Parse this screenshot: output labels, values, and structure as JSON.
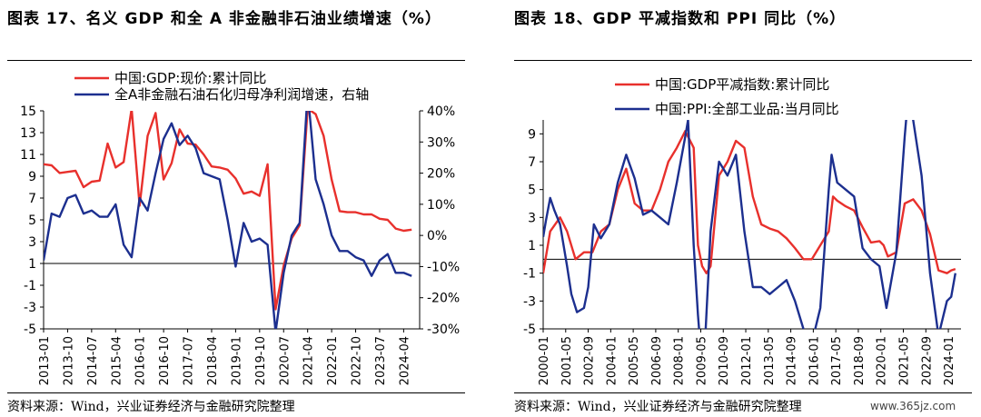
{
  "left_title": "图表 17、名义 GDP 和全 A 非金融非石油业绩增速（%）",
  "right_title": "图表 18、GDP 平减指数和 PPI 同比（%）",
  "left_source": "资料来源：Wind，兴业证券经济与金融研究院整理",
  "right_source": "资料来源：Wind，兴业证券经济与金融研究院整理",
  "watermark": "www.365jz.com",
  "colors": {
    "red": "#e8302c",
    "blue": "#1c2f8f"
  },
  "chart_data": [
    {
      "type": "line",
      "x_tick_labels": [
        "2013-01",
        "2013-10",
        "2014-07",
        "2015-04",
        "2016-01",
        "2016-10",
        "2017-07",
        "2018-04",
        "2019-01",
        "2019-10",
        "2020-07",
        "2021-04",
        "2022-01",
        "2022-10",
        "2023-07",
        "2024-04"
      ],
      "y_left": {
        "ticks": [
          -5,
          -3,
          -1,
          1,
          3,
          5,
          7,
          9,
          11,
          13,
          15
        ],
        "lim": [
          -5,
          15
        ]
      },
      "y_right": {
        "ticks": [
          "-30%",
          "-20%",
          "-10%",
          "0%",
          "10%",
          "20%",
          "30%",
          "40%"
        ],
        "lim": [
          -30,
          40
        ]
      },
      "legend": [
        "中国:GDP:现价:累计同比",
        "全A非金融石油石化归母净利润增速，右轴"
      ],
      "series": [
        {
          "name": "中国:GDP:现价:累计同比",
          "axis": "left",
          "color": "red",
          "x": [
            "2013-01",
            "2013-04",
            "2013-07",
            "2013-10",
            "2014-01",
            "2014-04",
            "2014-07",
            "2014-10",
            "2015-01",
            "2015-04",
            "2015-07",
            "2015-10",
            "2016-01",
            "2016-04",
            "2016-07",
            "2016-10",
            "2017-01",
            "2017-04",
            "2017-07",
            "2017-10",
            "2018-01",
            "2018-04",
            "2018-07",
            "2018-10",
            "2019-01",
            "2019-04",
            "2019-07",
            "2019-10",
            "2020-01",
            "2020-04",
            "2020-07",
            "2020-10",
            "2021-01",
            "2021-04",
            "2021-07",
            "2021-10",
            "2022-01",
            "2022-04",
            "2022-07",
            "2022-10",
            "2023-01",
            "2023-04",
            "2023-07",
            "2023-10",
            "2024-01",
            "2024-04",
            "2024-07"
          ],
          "y": [
            10.1,
            10.0,
            9.3,
            9.4,
            9.5,
            8.0,
            8.5,
            8.6,
            12.0,
            9.8,
            10.3,
            15.2,
            6.3,
            12.7,
            14.8,
            8.7,
            10.2,
            13.3,
            12.0,
            11.9,
            11.0,
            9.9,
            9.8,
            9.6,
            8.8,
            7.4,
            7.6,
            7.2,
            10.1,
            -3.2,
            0.8,
            3.3,
            4.5,
            15.2,
            14.7,
            12.7,
            8.7,
            5.8,
            5.7,
            5.7,
            5.5,
            5.5,
            5.1,
            5.0,
            4.2,
            4.0,
            4.1
          ]
        },
        {
          "name": "全A非金融石油石化归母净利润增速，右轴",
          "axis": "right",
          "color": "blue",
          "x": [
            "2013-01",
            "2013-04",
            "2013-07",
            "2013-10",
            "2014-01",
            "2014-04",
            "2014-07",
            "2014-10",
            "2015-01",
            "2015-04",
            "2015-07",
            "2015-10",
            "2016-01",
            "2016-04",
            "2016-07",
            "2016-10",
            "2017-01",
            "2017-04",
            "2017-07",
            "2017-10",
            "2018-01",
            "2018-04",
            "2018-07",
            "2018-10",
            "2019-01",
            "2019-04",
            "2019-07",
            "2019-10",
            "2020-01",
            "2020-04",
            "2020-07",
            "2020-10",
            "2021-01",
            "2021-04",
            "2021-07",
            "2021-10",
            "2022-01",
            "2022-04",
            "2022-07",
            "2022-10",
            "2023-01",
            "2023-04",
            "2023-07",
            "2023-10",
            "2024-01",
            "2024-04",
            "2024-07"
          ],
          "y": [
            -8,
            7,
            6,
            12,
            13,
            7,
            8,
            6,
            6,
            10,
            -3,
            -7,
            12,
            8,
            20,
            31,
            36,
            29,
            32,
            28,
            20,
            19,
            18,
            5,
            -10,
            4,
            -2,
            -1,
            -3,
            -31,
            -12,
            0,
            4,
            46,
            18,
            10,
            0,
            -5,
            -5,
            -7,
            -8,
            -13,
            -8,
            -6,
            -12,
            -12,
            -13
          ]
        }
      ]
    },
    {
      "type": "line",
      "x_tick_labels": [
        "2000-01",
        "2001-05",
        "2002-09",
        "2004-01",
        "2005-05",
        "2006-09",
        "2008-01",
        "2009-05",
        "2010-09",
        "2012-01",
        "2013-05",
        "2014-09",
        "2016-01",
        "2017-05",
        "2018-09",
        "2020-01",
        "2021-05",
        "2022-09",
        "2024-01"
      ],
      "y": {
        "ticks": [
          -5,
          -3,
          -1,
          1,
          3,
          5,
          7,
          9
        ],
        "lim": [
          -5,
          10
        ]
      },
      "legend": [
        "中国:GDP平减指数:累计同比",
        "中国:PPI:全部工业品:当月同比"
      ],
      "series": [
        {
          "name": "中国:GDP平减指数:累计同比",
          "color": "red",
          "x": [
            "2000-01",
            "2000-06",
            "2001-01",
            "2001-06",
            "2001-12",
            "2002-06",
            "2002-12",
            "2003-06",
            "2003-12",
            "2004-06",
            "2004-12",
            "2005-06",
            "2005-12",
            "2006-06",
            "2006-12",
            "2007-06",
            "2007-12",
            "2008-06",
            "2008-12",
            "2009-03",
            "2009-06",
            "2009-09",
            "2009-12",
            "2010-06",
            "2010-12",
            "2011-06",
            "2011-12",
            "2012-06",
            "2012-12",
            "2013-06",
            "2013-12",
            "2014-06",
            "2014-12",
            "2015-06",
            "2015-12",
            "2016-06",
            "2016-12",
            "2017-03",
            "2017-06",
            "2017-12",
            "2018-06",
            "2018-12",
            "2019-06",
            "2019-12",
            "2020-03",
            "2020-06",
            "2020-12",
            "2021-06",
            "2021-12",
            "2022-06",
            "2022-12",
            "2023-06",
            "2023-12",
            "2024-03",
            "2024-06"
          ],
          "y": [
            -1,
            2,
            3,
            2,
            0,
            0.5,
            0.5,
            2,
            2.5,
            5,
            6.5,
            4,
            3.5,
            3.5,
            5,
            7,
            8,
            9.2,
            8,
            1,
            -0.5,
            -1,
            -0.5,
            6,
            7,
            8.5,
            8,
            4.5,
            2.5,
            2.2,
            2,
            1.5,
            0.8,
            0,
            0,
            1,
            2,
            4.5,
            4.2,
            3.8,
            3.5,
            2.3,
            1.2,
            1.3,
            1,
            0.2,
            0.5,
            4,
            4.3,
            3.5,
            1.8,
            -0.8,
            -1,
            -0.8,
            -0.7
          ]
        },
        {
          "name": "中国:PPI:全部工业品:当月同比",
          "color": "blue",
          "x": [
            "2000-01",
            "2000-03",
            "2000-06",
            "2000-09",
            "2001-01",
            "2001-06",
            "2001-09",
            "2002-01",
            "2002-06",
            "2002-09",
            "2003-01",
            "2003-06",
            "2003-12",
            "2004-06",
            "2004-12",
            "2005-06",
            "2005-12",
            "2006-06",
            "2006-12",
            "2007-06",
            "2007-12",
            "2008-06",
            "2008-08",
            "2008-12",
            "2009-03",
            "2009-06",
            "2009-07",
            "2009-12",
            "2010-06",
            "2010-12",
            "2011-06",
            "2011-12",
            "2012-06",
            "2012-12",
            "2013-06",
            "2013-12",
            "2014-06",
            "2014-12",
            "2015-06",
            "2015-12",
            "2016-06",
            "2016-12",
            "2017-02",
            "2017-06",
            "2017-12",
            "2018-06",
            "2018-12",
            "2019-06",
            "2019-12",
            "2020-05",
            "2020-12",
            "2021-06",
            "2021-10",
            "2021-12",
            "2022-06",
            "2022-12",
            "2023-06",
            "2023-12",
            "2024-03",
            "2024-06"
          ],
          "y": [
            1.6,
            2.8,
            4.4,
            3.5,
            2.5,
            -0.5,
            -2.5,
            -3.8,
            -3.5,
            -2,
            2.5,
            1.5,
            2.5,
            5.5,
            7.5,
            5.8,
            3.2,
            3.5,
            3,
            2.5,
            5.5,
            8.8,
            10,
            1,
            -4,
            -7.8,
            -8,
            2,
            7,
            6,
            7.5,
            2,
            -2,
            -2,
            -2.5,
            -2,
            -1.5,
            -3,
            -5,
            -6,
            -3.5,
            5,
            7.5,
            5.5,
            5,
            4.5,
            0.8,
            0,
            -0.5,
            -3.5,
            0.5,
            8.8,
            13.5,
            10,
            6,
            -1,
            -5.5,
            -3,
            -2.7,
            -1
          ]
        }
      ]
    }
  ]
}
